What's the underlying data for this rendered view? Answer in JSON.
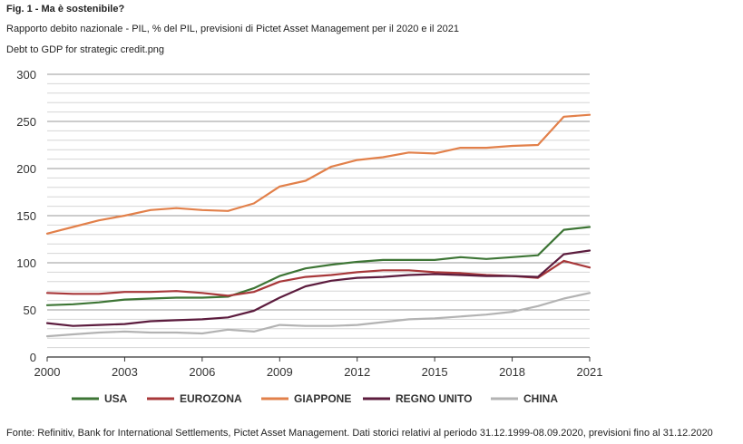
{
  "header": {
    "figure_label": "Fig. 1 - Ma è sostenibile?",
    "subtitle": "Rapporto debito nazionale - PIL, % del PIL, previsioni di Pictet Asset Management per il 2020 e il 2021",
    "filename": "Debt to GDP for strategic credit.png"
  },
  "footer": {
    "source": "Fonte: Refinitiv, Bank for International Settlements, Pictet Asset Management. Dati storici relativi al periodo 31.12.1999-08.09.2020, previsioni fino al 31.12.2020"
  },
  "chart_data": {
    "type": "line",
    "title": "",
    "xlabel": "",
    "ylabel": "",
    "x": [
      2000,
      2001,
      2002,
      2003,
      2004,
      2005,
      2006,
      2007,
      2008,
      2009,
      2010,
      2011,
      2012,
      2013,
      2014,
      2015,
      2016,
      2017,
      2018,
      2019,
      2020,
      2021
    ],
    "xlim": [
      2000,
      2021
    ],
    "ylim": [
      0,
      300
    ],
    "x_ticks": [
      2000,
      2003,
      2006,
      2009,
      2012,
      2015,
      2018,
      2021
    ],
    "y_ticks": [
      0,
      50,
      100,
      150,
      200,
      250,
      300
    ],
    "grid": true,
    "legend_position": "bottom",
    "series": [
      {
        "name": "USA",
        "color": "#3d7535",
        "values": [
          55,
          56,
          58,
          61,
          62,
          63,
          63,
          64,
          73,
          86,
          94,
          98,
          101,
          103,
          103,
          103,
          106,
          104,
          106,
          108,
          135,
          138
        ]
      },
      {
        "name": "EUROZONA",
        "color": "#a8383a",
        "values": [
          68,
          67,
          67,
          69,
          69,
          70,
          68,
          65,
          69,
          80,
          85,
          87,
          90,
          92,
          92,
          90,
          89,
          87,
          86,
          84,
          102,
          95
        ]
      },
      {
        "name": "GIAPPONE",
        "color": "#e2804a",
        "values": [
          131,
          138,
          145,
          150,
          156,
          158,
          156,
          155,
          163,
          181,
          187,
          202,
          209,
          212,
          217,
          216,
          222,
          222,
          224,
          225,
          255,
          257
        ]
      },
      {
        "name": "REGNO UNITO",
        "color": "#5c1c3e",
        "values": [
          36,
          33,
          34,
          35,
          38,
          39,
          40,
          42,
          49,
          63,
          75,
          81,
          84,
          85,
          87,
          88,
          87,
          86,
          86,
          85,
          109,
          113
        ]
      },
      {
        "name": "CHINA",
        "color": "#b3b3b3",
        "values": [
          22,
          24,
          26,
          27,
          26,
          26,
          25,
          29,
          27,
          34,
          33,
          33,
          34,
          37,
          40,
          41,
          43,
          45,
          48,
          54,
          62,
          68
        ]
      }
    ]
  }
}
